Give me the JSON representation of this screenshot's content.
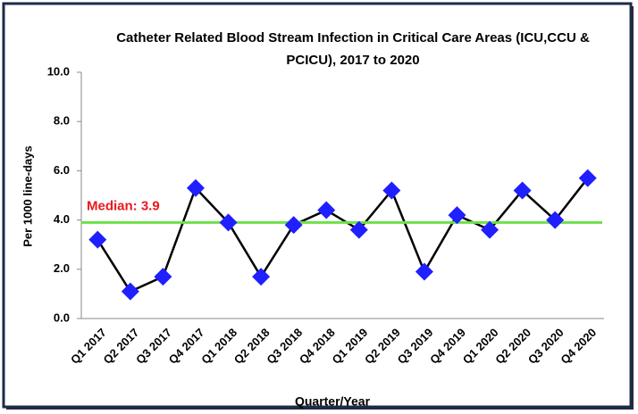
{
  "chart_data": {
    "type": "line",
    "title": "Catheter Related Blood Stream Infection in Critical Care Areas (ICU,CCU & PCICU), 2017 to 2020",
    "x_label": "Quarter/Year",
    "y_label": "Per 1000 line-days",
    "categories": [
      "Q1 2017",
      "Q2 2017",
      "Q3 2017",
      "Q4 2017",
      "Q1 2018",
      "Q2 2018",
      "Q3 2018",
      "Q4 2018",
      "Q1 2019",
      "Q2 2019",
      "Q3 2019",
      "Q4 2019",
      "Q1 2020",
      "Q2 2020",
      "Q3 2020",
      "Q4 2020"
    ],
    "values": [
      3.2,
      1.1,
      1.7,
      5.3,
      3.9,
      1.7,
      3.8,
      4.4,
      3.6,
      5.2,
      1.9,
      4.2,
      3.6,
      5.2,
      4.0,
      5.7
    ],
    "color": "#1f1fff",
    "line_color": "#000000",
    "median": {
      "label": "Median: 3.9",
      "value": 3.9,
      "color": "#6ee04a",
      "label_color": "#e8191f"
    },
    "ylim": [
      0,
      10
    ],
    "yticks": [
      {
        "value": 0,
        "label": "0.0"
      },
      {
        "value": 2,
        "label": "2.0"
      },
      {
        "value": 4,
        "label": "4.0"
      },
      {
        "value": 6,
        "label": "6.0"
      },
      {
        "value": 8,
        "label": "8.0"
      },
      {
        "value": 10,
        "label": "10.0"
      }
    ],
    "grid": false
  }
}
